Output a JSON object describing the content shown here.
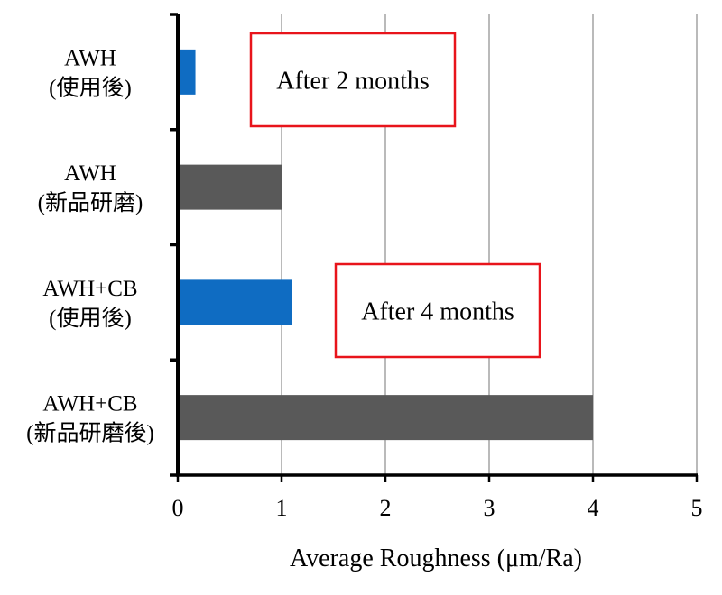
{
  "chart_data": {
    "type": "bar",
    "orientation": "horizontal",
    "categories": [
      [
        "AWH",
        "(使用後)"
      ],
      [
        "AWH",
        "(新品研磨)"
      ],
      [
        "AWH+CB",
        "(使用後)"
      ],
      [
        "AWH+CB",
        "(新品研磨後)"
      ]
    ],
    "values": [
      0.17,
      1.0,
      1.1,
      4.0
    ],
    "bar_colors": [
      "#0f6cc2",
      "#595959",
      "#0f6cc2",
      "#595959"
    ],
    "xlabel": "Average Roughness (μm/Ra)",
    "xlim": [
      0,
      5
    ],
    "xticks": [
      "0",
      "1",
      "2",
      "3",
      "4",
      "5"
    ],
    "grid": true,
    "annotations": [
      {
        "text": "After 2 months",
        "border_color": "#e8141b"
      },
      {
        "text": "After 4 months",
        "border_color": "#e8141b"
      }
    ]
  }
}
